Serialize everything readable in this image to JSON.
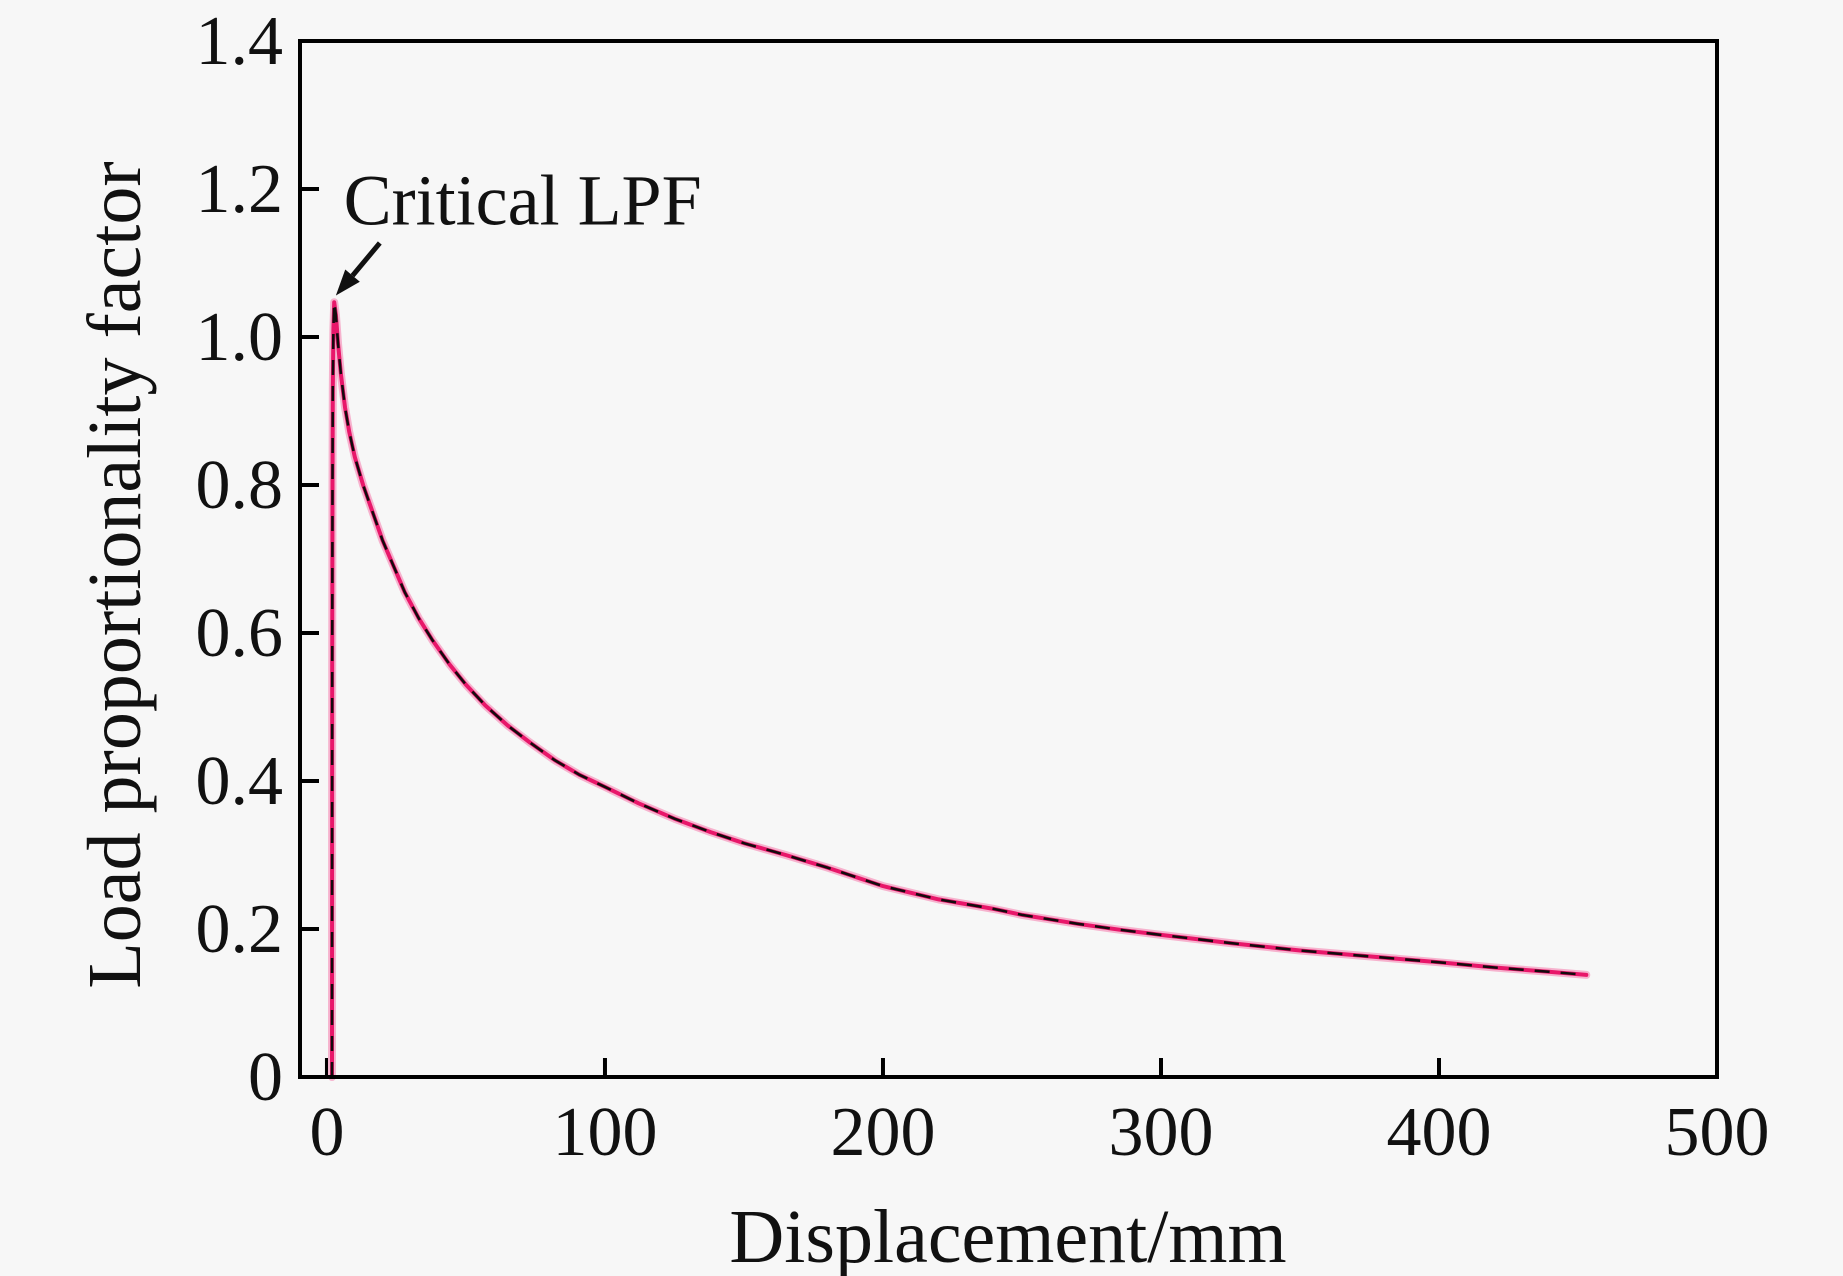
{
  "chart_data": {
    "type": "line",
    "title": "",
    "xlabel": "Displacement/mm",
    "ylabel": "Load proportionality factor",
    "xlim": [
      -9.7,
      500
    ],
    "ylim": [
      0,
      1.4
    ],
    "grid": false,
    "legend": "none",
    "x_ticks": {
      "values": [
        0,
        100,
        200,
        300,
        400,
        500
      ],
      "labels": [
        "0",
        "100",
        "200",
        "300",
        "400",
        "500"
      ]
    },
    "y_ticks": {
      "values": [
        0,
        0.2,
        0.4,
        0.6,
        0.8,
        1.0,
        1.2,
        1.4
      ],
      "labels": [
        "0",
        "0.2",
        "0.4",
        "0.6",
        "0.8",
        "1.0",
        "1.2",
        "1.4"
      ]
    },
    "annotation": {
      "label": "Critical LPF",
      "label_pos": {
        "x": 6,
        "y": 1.152
      },
      "arrow_from": {
        "x": 19,
        "y": 1.127
      },
      "arrow_to": {
        "x": 3.2,
        "y": 1.056
      },
      "peak_value_approx": 1.05
    },
    "series": [
      {
        "name": "riks-curve-solid-pink",
        "style": "solid",
        "color": "#e8176a"
      },
      {
        "name": "riks-curve-dashed-black",
        "style": "dashed",
        "color": "#150a0e"
      }
    ],
    "points": [
      [
        1.8,
        0.0
      ],
      [
        1.85,
        0.3
      ],
      [
        1.9,
        0.55
      ],
      [
        2.0,
        0.8
      ],
      [
        2.1,
        0.93
      ],
      [
        2.3,
        1.01
      ],
      [
        2.6,
        1.047
      ],
      [
        3.2,
        1.03
      ],
      [
        4,
        0.99
      ],
      [
        5,
        0.95
      ],
      [
        6.5,
        0.905
      ],
      [
        8,
        0.872
      ],
      [
        10,
        0.838
      ],
      [
        13,
        0.8
      ],
      [
        16,
        0.768
      ],
      [
        20,
        0.725
      ],
      [
        24,
        0.69
      ],
      [
        28,
        0.655
      ],
      [
        33,
        0.62
      ],
      [
        38,
        0.59
      ],
      [
        44,
        0.558
      ],
      [
        50,
        0.53
      ],
      [
        57,
        0.502
      ],
      [
        65,
        0.475
      ],
      [
        73,
        0.452
      ],
      [
        82,
        0.428
      ],
      [
        91,
        0.408
      ],
      [
        100,
        0.392
      ],
      [
        112,
        0.37
      ],
      [
        125,
        0.349
      ],
      [
        138,
        0.331
      ],
      [
        150,
        0.316
      ],
      [
        165,
        0.3
      ],
      [
        180,
        0.283
      ],
      [
        200,
        0.258
      ],
      [
        220,
        0.24
      ],
      [
        240,
        0.227
      ],
      [
        250,
        0.219
      ],
      [
        270,
        0.207
      ],
      [
        285,
        0.199
      ],
      [
        300,
        0.192
      ],
      [
        325,
        0.181
      ],
      [
        350,
        0.171
      ],
      [
        375,
        0.163
      ],
      [
        400,
        0.155
      ],
      [
        420,
        0.148
      ],
      [
        440,
        0.142
      ],
      [
        453,
        0.138
      ]
    ]
  },
  "colors": {
    "background": "#f7f7f7",
    "axis": "#000000",
    "text": "#111111",
    "line_halo": "#f6b3ce",
    "line_pink": "#e8176a",
    "line_dash": "#150a0e"
  }
}
